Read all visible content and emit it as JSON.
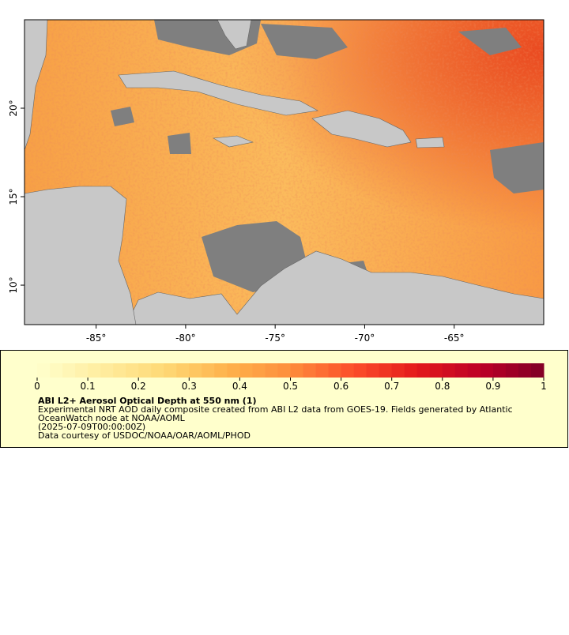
{
  "map": {
    "lon_range": [
      -89,
      -60
    ],
    "lat_range": [
      7.77,
      25
    ],
    "lon_ticks": [
      {
        "value": -85,
        "label": "-85°"
      },
      {
        "value": -80,
        "label": "-80°"
      },
      {
        "value": -75,
        "label": "-75°"
      },
      {
        "value": -70,
        "label": "-70°"
      },
      {
        "value": -65,
        "label": "-65°"
      }
    ],
    "lat_ticks": [
      {
        "value": 10,
        "label": "10°"
      },
      {
        "value": 15,
        "label": "15°"
      },
      {
        "value": 20,
        "label": "20°"
      }
    ]
  },
  "colorbar": {
    "range": [
      0,
      1
    ],
    "ticks": [
      0,
      0.1,
      0.2,
      0.3,
      0.4,
      0.5,
      0.6,
      0.7,
      0.8,
      0.9,
      1
    ],
    "colors": [
      "#ffffcc",
      "#ffeda0",
      "#fed976",
      "#feb24c",
      "#fd8d3c",
      "#fc4e2a",
      "#e31a1c",
      "#bd0026",
      "#800026"
    ]
  },
  "legend": {
    "title": "ABI L2+ Aerosol Optical Depth at 550 nm (1)",
    "lines": [
      "Experimental NRT AOD daily composite created from ABI L2 data from GOES-19. Fields generated by Atlantic",
      "OceanWatch node at NOAA/AOML",
      "(2025-07-09T00:00:00Z)",
      "Data courtesy of USDOC/NOAA/OAR/AOML/PHOD"
    ]
  }
}
